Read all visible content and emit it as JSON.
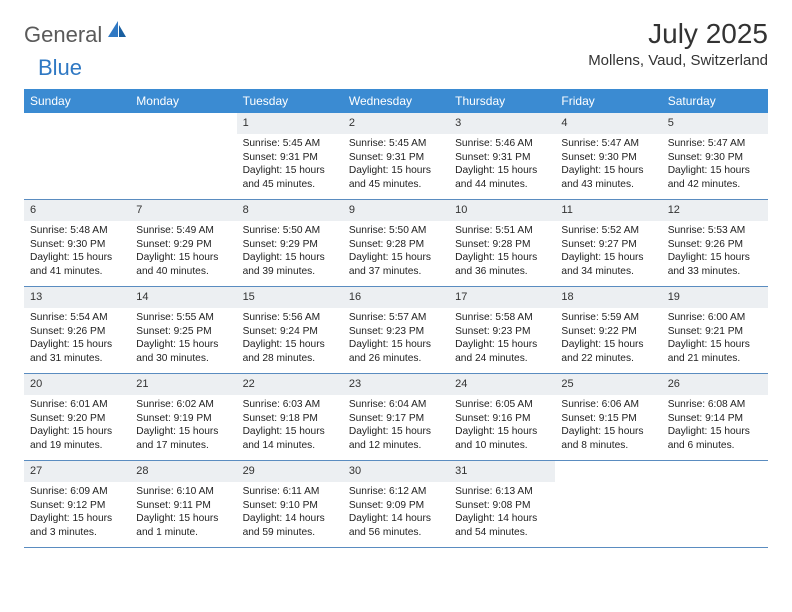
{
  "logo": {
    "general": "General",
    "blue": "Blue"
  },
  "title": {
    "month": "July 2025",
    "location": "Mollens, Vaud, Switzerland"
  },
  "colors": {
    "header_bg": "#3b8bd2",
    "header_text": "#ffffff",
    "daynum_bg": "#eceff2",
    "row_border": "#5a8cc0",
    "logo_gray": "#5a5a5a",
    "logo_blue": "#2f78c3"
  },
  "weekdays": [
    "Sunday",
    "Monday",
    "Tuesday",
    "Wednesday",
    "Thursday",
    "Friday",
    "Saturday"
  ],
  "weeks": [
    [
      {
        "empty": true
      },
      {
        "empty": true
      },
      {
        "n": "1",
        "sr": "Sunrise: 5:45 AM",
        "ss": "Sunset: 9:31 PM",
        "dl1": "Daylight: 15 hours",
        "dl2": "and 45 minutes."
      },
      {
        "n": "2",
        "sr": "Sunrise: 5:45 AM",
        "ss": "Sunset: 9:31 PM",
        "dl1": "Daylight: 15 hours",
        "dl2": "and 45 minutes."
      },
      {
        "n": "3",
        "sr": "Sunrise: 5:46 AM",
        "ss": "Sunset: 9:31 PM",
        "dl1": "Daylight: 15 hours",
        "dl2": "and 44 minutes."
      },
      {
        "n": "4",
        "sr": "Sunrise: 5:47 AM",
        "ss": "Sunset: 9:30 PM",
        "dl1": "Daylight: 15 hours",
        "dl2": "and 43 minutes."
      },
      {
        "n": "5",
        "sr": "Sunrise: 5:47 AM",
        "ss": "Sunset: 9:30 PM",
        "dl1": "Daylight: 15 hours",
        "dl2": "and 42 minutes."
      }
    ],
    [
      {
        "n": "6",
        "sr": "Sunrise: 5:48 AM",
        "ss": "Sunset: 9:30 PM",
        "dl1": "Daylight: 15 hours",
        "dl2": "and 41 minutes."
      },
      {
        "n": "7",
        "sr": "Sunrise: 5:49 AM",
        "ss": "Sunset: 9:29 PM",
        "dl1": "Daylight: 15 hours",
        "dl2": "and 40 minutes."
      },
      {
        "n": "8",
        "sr": "Sunrise: 5:50 AM",
        "ss": "Sunset: 9:29 PM",
        "dl1": "Daylight: 15 hours",
        "dl2": "and 39 minutes."
      },
      {
        "n": "9",
        "sr": "Sunrise: 5:50 AM",
        "ss": "Sunset: 9:28 PM",
        "dl1": "Daylight: 15 hours",
        "dl2": "and 37 minutes."
      },
      {
        "n": "10",
        "sr": "Sunrise: 5:51 AM",
        "ss": "Sunset: 9:28 PM",
        "dl1": "Daylight: 15 hours",
        "dl2": "and 36 minutes."
      },
      {
        "n": "11",
        "sr": "Sunrise: 5:52 AM",
        "ss": "Sunset: 9:27 PM",
        "dl1": "Daylight: 15 hours",
        "dl2": "and 34 minutes."
      },
      {
        "n": "12",
        "sr": "Sunrise: 5:53 AM",
        "ss": "Sunset: 9:26 PM",
        "dl1": "Daylight: 15 hours",
        "dl2": "and 33 minutes."
      }
    ],
    [
      {
        "n": "13",
        "sr": "Sunrise: 5:54 AM",
        "ss": "Sunset: 9:26 PM",
        "dl1": "Daylight: 15 hours",
        "dl2": "and 31 minutes."
      },
      {
        "n": "14",
        "sr": "Sunrise: 5:55 AM",
        "ss": "Sunset: 9:25 PM",
        "dl1": "Daylight: 15 hours",
        "dl2": "and 30 minutes."
      },
      {
        "n": "15",
        "sr": "Sunrise: 5:56 AM",
        "ss": "Sunset: 9:24 PM",
        "dl1": "Daylight: 15 hours",
        "dl2": "and 28 minutes."
      },
      {
        "n": "16",
        "sr": "Sunrise: 5:57 AM",
        "ss": "Sunset: 9:23 PM",
        "dl1": "Daylight: 15 hours",
        "dl2": "and 26 minutes."
      },
      {
        "n": "17",
        "sr": "Sunrise: 5:58 AM",
        "ss": "Sunset: 9:23 PM",
        "dl1": "Daylight: 15 hours",
        "dl2": "and 24 minutes."
      },
      {
        "n": "18",
        "sr": "Sunrise: 5:59 AM",
        "ss": "Sunset: 9:22 PM",
        "dl1": "Daylight: 15 hours",
        "dl2": "and 22 minutes."
      },
      {
        "n": "19",
        "sr": "Sunrise: 6:00 AM",
        "ss": "Sunset: 9:21 PM",
        "dl1": "Daylight: 15 hours",
        "dl2": "and 21 minutes."
      }
    ],
    [
      {
        "n": "20",
        "sr": "Sunrise: 6:01 AM",
        "ss": "Sunset: 9:20 PM",
        "dl1": "Daylight: 15 hours",
        "dl2": "and 19 minutes."
      },
      {
        "n": "21",
        "sr": "Sunrise: 6:02 AM",
        "ss": "Sunset: 9:19 PM",
        "dl1": "Daylight: 15 hours",
        "dl2": "and 17 minutes."
      },
      {
        "n": "22",
        "sr": "Sunrise: 6:03 AM",
        "ss": "Sunset: 9:18 PM",
        "dl1": "Daylight: 15 hours",
        "dl2": "and 14 minutes."
      },
      {
        "n": "23",
        "sr": "Sunrise: 6:04 AM",
        "ss": "Sunset: 9:17 PM",
        "dl1": "Daylight: 15 hours",
        "dl2": "and 12 minutes."
      },
      {
        "n": "24",
        "sr": "Sunrise: 6:05 AM",
        "ss": "Sunset: 9:16 PM",
        "dl1": "Daylight: 15 hours",
        "dl2": "and 10 minutes."
      },
      {
        "n": "25",
        "sr": "Sunrise: 6:06 AM",
        "ss": "Sunset: 9:15 PM",
        "dl1": "Daylight: 15 hours",
        "dl2": "and 8 minutes."
      },
      {
        "n": "26",
        "sr": "Sunrise: 6:08 AM",
        "ss": "Sunset: 9:14 PM",
        "dl1": "Daylight: 15 hours",
        "dl2": "and 6 minutes."
      }
    ],
    [
      {
        "n": "27",
        "sr": "Sunrise: 6:09 AM",
        "ss": "Sunset: 9:12 PM",
        "dl1": "Daylight: 15 hours",
        "dl2": "and 3 minutes."
      },
      {
        "n": "28",
        "sr": "Sunrise: 6:10 AM",
        "ss": "Sunset: 9:11 PM",
        "dl1": "Daylight: 15 hours",
        "dl2": "and 1 minute."
      },
      {
        "n": "29",
        "sr": "Sunrise: 6:11 AM",
        "ss": "Sunset: 9:10 PM",
        "dl1": "Daylight: 14 hours",
        "dl2": "and 59 minutes."
      },
      {
        "n": "30",
        "sr": "Sunrise: 6:12 AM",
        "ss": "Sunset: 9:09 PM",
        "dl1": "Daylight: 14 hours",
        "dl2": "and 56 minutes."
      },
      {
        "n": "31",
        "sr": "Sunrise: 6:13 AM",
        "ss": "Sunset: 9:08 PM",
        "dl1": "Daylight: 14 hours",
        "dl2": "and 54 minutes."
      },
      {
        "empty": true
      },
      {
        "empty": true
      }
    ]
  ]
}
